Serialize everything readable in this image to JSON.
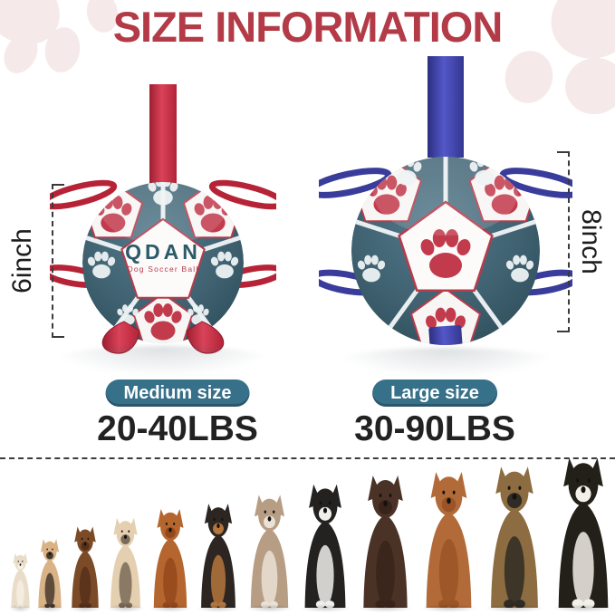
{
  "header": {
    "title": "SIZE INFORMATION"
  },
  "colors": {
    "title": "#b23b47",
    "ball_teal": "#3f6170",
    "red_strap": "#c8293e",
    "blue_strap": "#3c3f9d",
    "pill": "#377089",
    "paw_red": "#c23b4c",
    "decor_pink": "#f6e9e9",
    "text_dark": "#222222"
  },
  "medium_ball": {
    "size_label": "6inch",
    "pill_label": "Medium size",
    "weight_label": "20-40LBS",
    "brand": "QDAN",
    "brand_subtitle": "Dog Soccer Ball",
    "strap_color_name": "red"
  },
  "large_ball": {
    "size_label": "8inch",
    "pill_label": "Large size",
    "weight_label": "30-90LBS",
    "strap_color_name": "blue"
  },
  "dogs": [
    {
      "breed": "chihuahua",
      "height": 62,
      "body": "#e9dcc8",
      "accent": "#f6efe3"
    },
    {
      "breed": "tan-puppy",
      "height": 78,
      "body": "#d9b286",
      "accent": "#473a2e"
    },
    {
      "breed": "dachshund",
      "height": 92,
      "body": "#7b4a27",
      "accent": "#56301a"
    },
    {
      "breed": "french-bulldog",
      "height": 102,
      "body": "#e4d0b0",
      "accent": "#7a6a58"
    },
    {
      "breed": "cavalier-spaniel",
      "height": 112,
      "body": "#b4662e",
      "accent": "#94491c"
    },
    {
      "breed": "miniature-pinscher",
      "height": 118,
      "body": "#2c2521",
      "accent": "#b5763c"
    },
    {
      "breed": "bulldog",
      "height": 128,
      "body": "#b79d83",
      "accent": "#eae2d6"
    },
    {
      "breed": "border-collie",
      "height": 140,
      "body": "#242220",
      "accent": "#f1efeb"
    },
    {
      "breed": "chocolate-labrador",
      "height": 150,
      "body": "#4b3226",
      "accent": "#38241a"
    },
    {
      "breed": "vizsla",
      "height": 154,
      "body": "#b16a38",
      "accent": "#9a5427"
    },
    {
      "breed": "german-shepherd",
      "height": 160,
      "body": "#8c6c40",
      "accent": "#2f2b25"
    },
    {
      "breed": "bernese-mountain-dog",
      "height": 170,
      "body": "#232019",
      "accent": "#f3f0e9"
    }
  ]
}
